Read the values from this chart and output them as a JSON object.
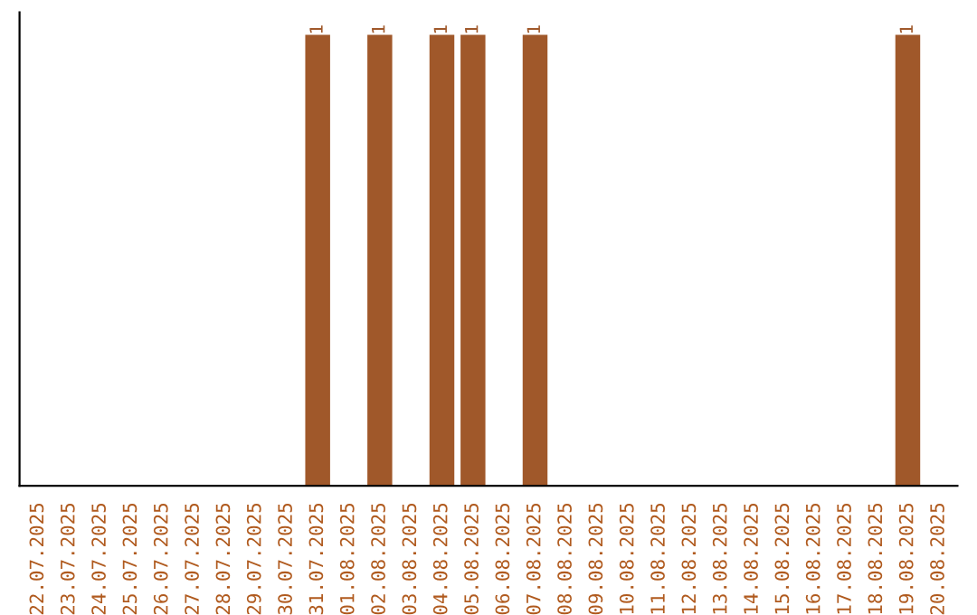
{
  "chart_data": {
    "type": "bar",
    "categories": [
      "22.07.2025",
      "23.07.2025",
      "24.07.2025",
      "25.07.2025",
      "26.07.2025",
      "27.07.2025",
      "28.07.2025",
      "29.07.2025",
      "30.07.2025",
      "31.07.2025",
      "01.08.2025",
      "02.08.2025",
      "03.08.2025",
      "04.08.2025",
      "05.08.2025",
      "06.08.2025",
      "07.08.2025",
      "08.08.2025",
      "09.08.2025",
      "10.08.2025",
      "11.08.2025",
      "12.08.2025",
      "13.08.2025",
      "14.08.2025",
      "15.08.2025",
      "16.08.2025",
      "17.08.2025",
      "18.08.2025",
      "19.08.2025",
      "20.08.2025"
    ],
    "values": [
      null,
      null,
      null,
      null,
      null,
      null,
      null,
      null,
      null,
      1,
      null,
      1,
      null,
      1,
      1,
      null,
      1,
      null,
      null,
      null,
      null,
      null,
      null,
      null,
      null,
      null,
      null,
      null,
      1,
      null
    ],
    "value_labels": [
      null,
      null,
      null,
      null,
      null,
      null,
      null,
      null,
      null,
      "1",
      null,
      "1",
      null,
      "1",
      "1",
      null,
      "1",
      null,
      null,
      null,
      null,
      null,
      null,
      null,
      null,
      null,
      null,
      null,
      "1",
      null
    ],
    "color": "#a0582a",
    "grid": false,
    "legend": false,
    "tick_labels": "x"
  }
}
